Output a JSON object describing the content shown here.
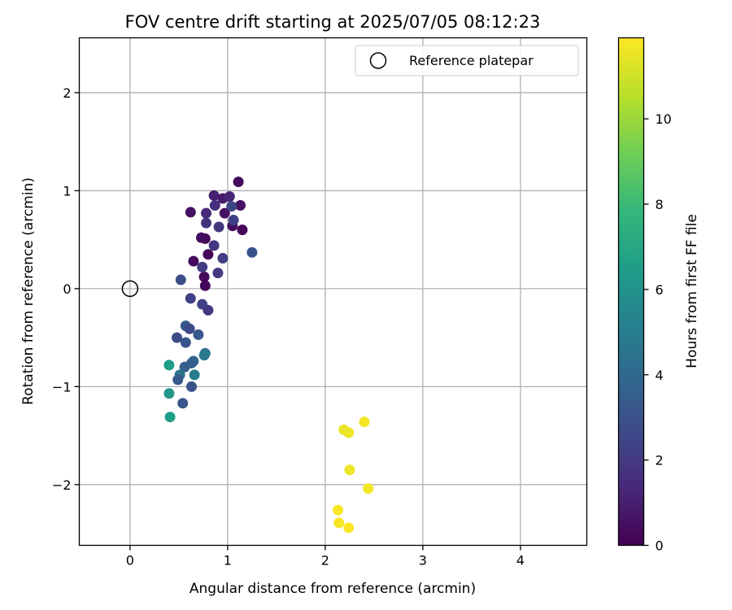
{
  "chart_data": {
    "type": "scatter",
    "title": "FOV centre drift starting at 2025/07/05 08:12:23",
    "xlabel": "Angular distance from reference (arcmin)",
    "ylabel": "Rotation from reference (arcmin)",
    "xlim": [
      -0.52,
      4.68
    ],
    "ylim": [
      -2.62,
      2.56
    ],
    "xticks": [
      0,
      1,
      2,
      3,
      4
    ],
    "xtick_labels": [
      "0",
      "1",
      "2",
      "3",
      "4"
    ],
    "yticks": [
      -2,
      -1,
      0,
      1,
      2
    ],
    "ytick_labels": [
      "−2",
      "−1",
      "0",
      "1",
      "2"
    ],
    "grid": true,
    "legend": {
      "placement": "top-right",
      "entries": [
        "Reference platepar"
      ]
    },
    "reference_point": {
      "x": 0,
      "y": 0,
      "label": "Reference platepar"
    },
    "colorbar": {
      "label": "Hours from first FF file",
      "colormap": "viridis",
      "range": [
        0,
        11.9
      ],
      "ticks": [
        0,
        2,
        4,
        6,
        8,
        10
      ],
      "tick_labels": [
        "0",
        "2",
        "4",
        "6",
        "8",
        "10"
      ]
    },
    "points": [
      {
        "x": 1.11,
        "y": 1.09,
        "t": 0.3
      },
      {
        "x": 0.62,
        "y": 0.78,
        "t": 0.5
      },
      {
        "x": 1.15,
        "y": 0.6,
        "t": 0.2
      },
      {
        "x": 1.13,
        "y": 0.85,
        "t": 0.6
      },
      {
        "x": 1.05,
        "y": 0.64,
        "t": 0.4
      },
      {
        "x": 0.97,
        "y": 0.77,
        "t": 0.5
      },
      {
        "x": 0.77,
        "y": 0.51,
        "t": 0.3
      },
      {
        "x": 0.73,
        "y": 0.52,
        "t": 0.4
      },
      {
        "x": 0.8,
        "y": 0.35,
        "t": 0.2
      },
      {
        "x": 0.65,
        "y": 0.28,
        "t": 0.3
      },
      {
        "x": 0.76,
        "y": 0.12,
        "t": 0.3
      },
      {
        "x": 0.77,
        "y": 0.03,
        "t": 0.2
      },
      {
        "x": 0.86,
        "y": 0.95,
        "t": 1.0
      },
      {
        "x": 0.95,
        "y": 0.92,
        "t": 0.9
      },
      {
        "x": 1.02,
        "y": 0.94,
        "t": 1.2
      },
      {
        "x": 1.04,
        "y": 0.84,
        "t": 2.5
      },
      {
        "x": 0.87,
        "y": 0.85,
        "t": 1.6
      },
      {
        "x": 0.78,
        "y": 0.77,
        "t": 1.4
      },
      {
        "x": 0.78,
        "y": 0.67,
        "t": 1.8
      },
      {
        "x": 1.06,
        "y": 0.7,
        "t": 2.3
      },
      {
        "x": 0.91,
        "y": 0.63,
        "t": 1.9
      },
      {
        "x": 0.86,
        "y": 0.44,
        "t": 1.9
      },
      {
        "x": 0.95,
        "y": 0.31,
        "t": 2.2
      },
      {
        "x": 0.9,
        "y": 0.16,
        "t": 2.0
      },
      {
        "x": 1.25,
        "y": 0.37,
        "t": 3.0
      },
      {
        "x": 0.74,
        "y": 0.22,
        "t": 2.1
      },
      {
        "x": 0.52,
        "y": 0.09,
        "t": 2.8
      },
      {
        "x": 0.62,
        "y": -0.1,
        "t": 2.3
      },
      {
        "x": 0.74,
        "y": -0.16,
        "t": 2.4
      },
      {
        "x": 0.8,
        "y": -0.22,
        "t": 2.0
      },
      {
        "x": 0.57,
        "y": -0.38,
        "t": 3.2
      },
      {
        "x": 0.61,
        "y": -0.41,
        "t": 2.6
      },
      {
        "x": 0.48,
        "y": -0.5,
        "t": 2.7
      },
      {
        "x": 0.7,
        "y": -0.47,
        "t": 3.3
      },
      {
        "x": 0.57,
        "y": -0.55,
        "t": 3.1
      },
      {
        "x": 0.77,
        "y": -0.66,
        "t": 4.4
      },
      {
        "x": 0.76,
        "y": -0.68,
        "t": 4.8
      },
      {
        "x": 0.65,
        "y": -0.74,
        "t": 4.0
      },
      {
        "x": 0.63,
        "y": -0.76,
        "t": 3.6
      },
      {
        "x": 0.56,
        "y": -0.8,
        "t": 3.5
      },
      {
        "x": 0.4,
        "y": -0.78,
        "t": 6.5
      },
      {
        "x": 0.66,
        "y": -0.88,
        "t": 5.0
      },
      {
        "x": 0.51,
        "y": -0.88,
        "t": 4.5
      },
      {
        "x": 0.49,
        "y": -0.93,
        "t": 3.2
      },
      {
        "x": 0.63,
        "y": -1.0,
        "t": 3.0
      },
      {
        "x": 0.4,
        "y": -1.07,
        "t": 6.2
      },
      {
        "x": 0.54,
        "y": -1.17,
        "t": 3.2
      },
      {
        "x": 0.41,
        "y": -1.31,
        "t": 6.6
      },
      {
        "x": 2.19,
        "y": -1.44,
        "t": 11.5
      },
      {
        "x": 2.24,
        "y": -1.47,
        "t": 11.6
      },
      {
        "x": 2.4,
        "y": -1.36,
        "t": 11.7
      },
      {
        "x": 2.25,
        "y": -1.85,
        "t": 11.6
      },
      {
        "x": 2.44,
        "y": -2.04,
        "t": 11.7
      },
      {
        "x": 2.13,
        "y": -2.26,
        "t": 11.8
      },
      {
        "x": 2.14,
        "y": -2.39,
        "t": 11.8
      },
      {
        "x": 2.24,
        "y": -2.44,
        "t": 11.9
      }
    ]
  }
}
